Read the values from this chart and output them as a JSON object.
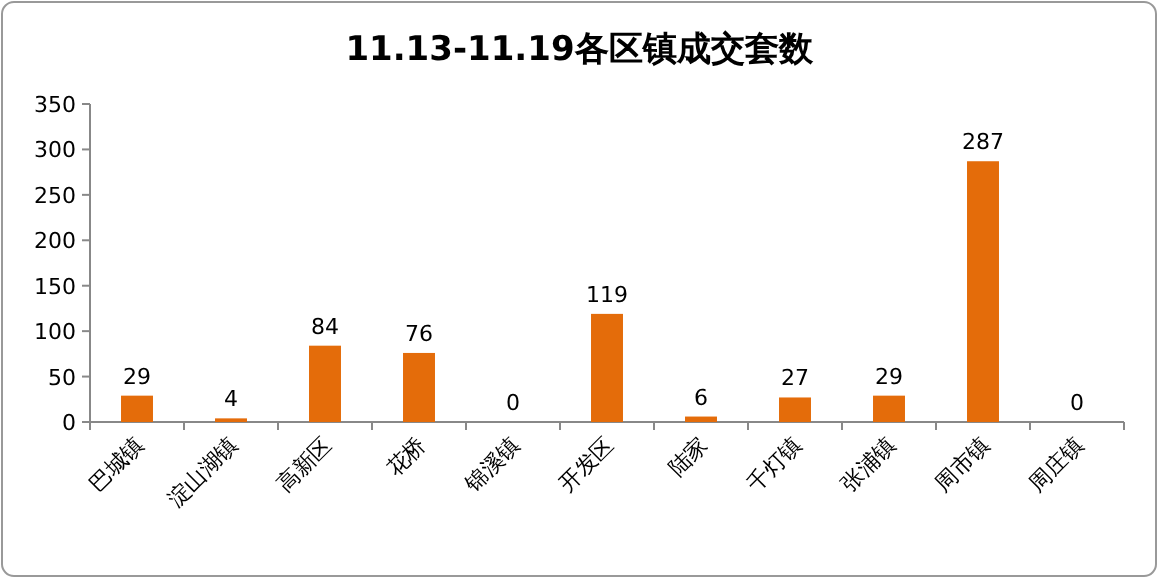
{
  "chart_data": {
    "type": "bar",
    "title": "11.13-11.19各区镇成交套数",
    "categories": [
      "巴城镇",
      "淀山湖镇",
      "高新区",
      "花桥",
      "锦溪镇",
      "开发区",
      "陆家",
      "千灯镇",
      "张浦镇",
      "周市镇",
      "周庄镇"
    ],
    "values": [
      29,
      4,
      84,
      76,
      0,
      119,
      6,
      27,
      29,
      287,
      0
    ],
    "color": "#e46c0a",
    "ylim": [
      0,
      350
    ],
    "yticks": [
      0,
      50,
      100,
      150,
      200,
      250,
      300,
      350
    ],
    "data_labels": true
  }
}
